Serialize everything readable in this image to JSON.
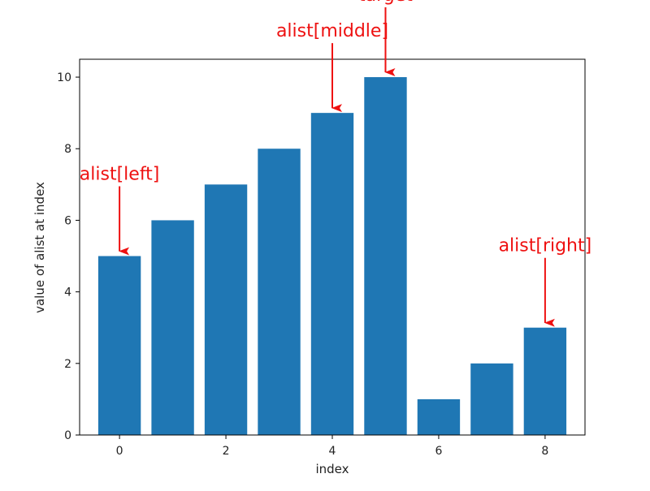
{
  "chart_data": {
    "type": "bar",
    "categories": [
      0,
      1,
      2,
      3,
      4,
      5,
      6,
      7,
      8
    ],
    "values": [
      5,
      6,
      7,
      8,
      9,
      10,
      1,
      2,
      3
    ],
    "title": "",
    "xlabel": "index",
    "ylabel": "value of alist at index",
    "xlim": [
      -0.75,
      8.75
    ],
    "ylim": [
      0,
      10.5
    ],
    "xticks": [
      0,
      2,
      4,
      6,
      8
    ],
    "yticks": [
      0,
      2,
      4,
      6,
      8,
      10
    ],
    "grid": false,
    "bar_color": "#1f77b4",
    "annotations": [
      {
        "text": "alist[left]",
        "index": 0
      },
      {
        "text": "alist[middle]",
        "index": 4
      },
      {
        "text": "target",
        "index": 5
      },
      {
        "text": "alist[right]",
        "index": 8
      }
    ],
    "annotation_color": "#ee1111"
  }
}
